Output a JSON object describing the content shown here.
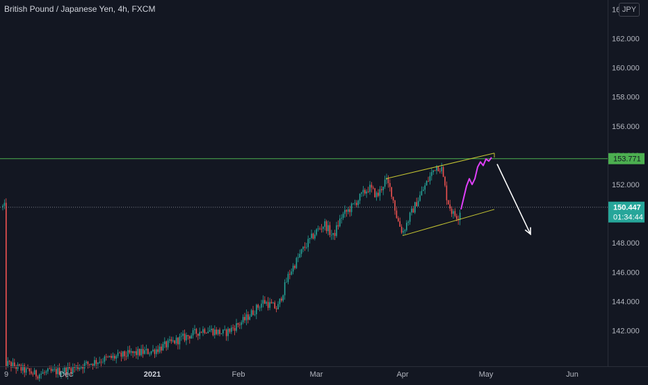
{
  "header": {
    "symbol_title": "British Pound / Japanese Yen, 4h, FXCM",
    "currency_button": "JPY"
  },
  "chart_data": {
    "type": "candlestick",
    "title": "British Pound / Japanese Yen, 4h, FXCM",
    "y_ticks": [
      "164.000",
      "162.000",
      "160.000",
      "158.000",
      "156.000",
      "154.000",
      "152.000",
      "150.000",
      "148.000",
      "146.000",
      "144.000",
      "142.000"
    ],
    "y_tick_values": [
      164,
      162,
      160,
      158,
      156,
      154,
      152,
      150,
      148,
      146,
      144,
      142
    ],
    "ylim": [
      139.7,
      164.3
    ],
    "x_ticks": [
      {
        "label": "9",
        "date": "2020-11-09",
        "bold": false
      },
      {
        "label": "Dec",
        "date": "2020-12-01",
        "bold": false
      },
      {
        "label": "2021",
        "date": "2021-01-01",
        "bold": true
      },
      {
        "label": "Feb",
        "date": "2021-02-01",
        "bold": false
      },
      {
        "label": "Mar",
        "date": "2021-03-01",
        "bold": false
      },
      {
        "label": "Apr",
        "date": "2021-04-01",
        "bold": false
      },
      {
        "label": "May",
        "date": "2021-05-01",
        "bold": false
      },
      {
        "label": "Jun",
        "date": "2021-06-01",
        "bold": false
      }
    ],
    "price_path": [
      [
        "2020-11-09",
        139.8
      ],
      [
        "2020-11-20",
        139.0
      ],
      [
        "2020-12-01",
        139.3
      ],
      [
        "2020-12-14",
        140.0
      ],
      [
        "2020-12-24",
        140.4
      ],
      [
        "2021-01-01",
        140.6
      ],
      [
        "2021-01-12",
        141.5
      ],
      [
        "2021-01-20",
        142.1
      ],
      [
        "2021-01-27",
        141.8
      ],
      [
        "2021-02-03",
        142.7
      ],
      [
        "2021-02-10",
        144.0
      ],
      [
        "2021-02-15",
        143.5
      ],
      [
        "2021-02-19",
        145.8
      ],
      [
        "2021-02-24",
        147.5
      ],
      [
        "2021-03-01",
        148.8
      ],
      [
        "2021-03-04",
        149.3
      ],
      [
        "2021-03-07",
        148.4
      ],
      [
        "2021-03-10",
        149.8
      ],
      [
        "2021-03-14",
        150.5
      ],
      [
        "2021-03-17",
        151.2
      ],
      [
        "2021-03-20",
        151.8
      ],
      [
        "2021-03-23",
        151.2
      ],
      [
        "2021-03-25",
        152.0
      ],
      [
        "2021-03-26",
        152.3
      ],
      [
        "2021-03-28",
        151.5
      ],
      [
        "2021-03-30",
        149.7
      ],
      [
        "2021-04-01",
        148.7
      ],
      [
        "2021-04-04",
        150.0
      ],
      [
        "2021-04-08",
        151.5
      ],
      [
        "2021-04-11",
        152.6
      ],
      [
        "2021-04-13",
        153.3
      ],
      [
        "2021-04-15",
        153.1
      ],
      [
        "2021-04-17",
        151.0
      ],
      [
        "2021-04-19",
        150.0
      ],
      [
        "2021-04-21",
        149.8
      ],
      [
        "2021-04-22",
        150.45
      ]
    ],
    "last_price": {
      "value": 150.447,
      "label": "150.447",
      "countdown": "01:34:44",
      "color": "#26a69a"
    },
    "resistance_line": {
      "value": 153.771,
      "label": "153.771",
      "color": "#4caf50"
    },
    "channel_color": "#c8c832",
    "channel_upper": [
      [
        "2021-03-26",
        152.4
      ],
      [
        "2021-05-04",
        154.15
      ]
    ],
    "channel_lower": [
      [
        "2021-04-01",
        148.5
      ],
      [
        "2021-05-04",
        150.3
      ]
    ],
    "channel_end_cap": [
      [
        "2021-05-04",
        154.15
      ],
      [
        "2021-05-04",
        153.85
      ]
    ],
    "projection_path": {
      "color": "#e040fb",
      "points": [
        [
          "2021-04-22",
          150.3
        ],
        [
          "2021-04-24",
          151.9
        ],
        [
          "2021-04-25",
          152.4
        ],
        [
          "2021-04-26",
          152.0
        ],
        [
          "2021-04-27",
          152.4
        ],
        [
          "2021-04-28",
          153.2
        ],
        [
          "2021-04-29",
          153.55
        ],
        [
          "2021-04-30",
          153.3
        ],
        [
          "2021-05-01",
          153.75
        ],
        [
          "2021-05-02",
          153.6
        ],
        [
          "2021-05-03",
          153.85
        ]
      ]
    },
    "forecast_arrow": {
      "color": "#ffffff",
      "from": [
        "2021-05-05",
        153.4
      ],
      "to": [
        "2021-05-17",
        148.6
      ]
    },
    "bull_color": "#26a69a",
    "bear_color": "#ef5350",
    "grid": false,
    "background": "#131722"
  }
}
